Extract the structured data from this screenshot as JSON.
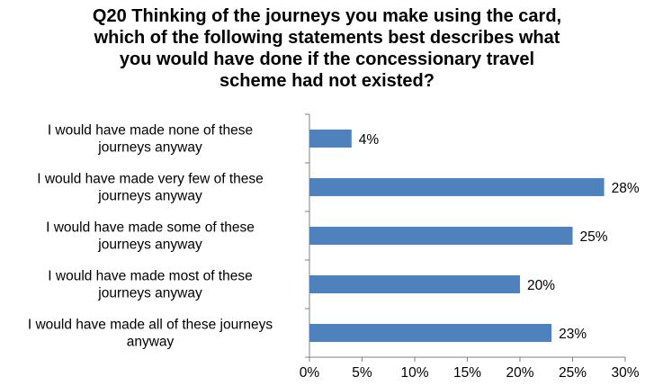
{
  "chart_data": {
    "type": "bar",
    "orientation": "horizontal",
    "title_lines": [
      "Q20 Thinking of the journeys you make using the card,",
      "which of the following statements best describes what",
      "you would have done if the concessionary travel",
      "scheme had not existed?"
    ],
    "categories": [
      [
        "I would have made none of these",
        "journeys anyway"
      ],
      [
        "I would have made very few of these",
        "journeys anyway"
      ],
      [
        "I would have made some of these",
        "journeys anyway"
      ],
      [
        "I would have made most of these",
        "journeys anyway"
      ],
      [
        "I would have made all of these journeys",
        "anyway"
      ]
    ],
    "values": [
      4,
      28,
      25,
      20,
      23
    ],
    "data_labels": [
      "4%",
      "28%",
      "25%",
      "20%",
      "23%"
    ],
    "xlim": [
      0,
      30
    ],
    "xticks": [
      0,
      5,
      10,
      15,
      20,
      25,
      30
    ],
    "xtick_labels": [
      "0%",
      "5%",
      "10%",
      "15%",
      "20%",
      "25%",
      "30%"
    ],
    "bar_color": "#4F81BD",
    "grid": false
  }
}
